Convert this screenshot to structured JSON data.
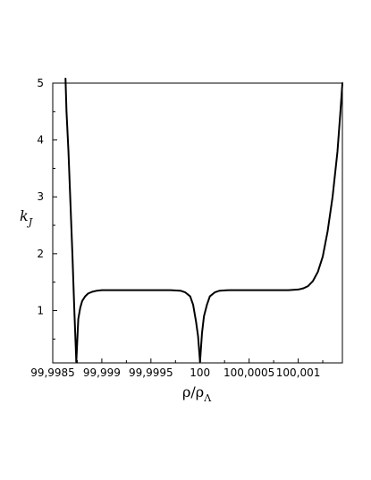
{
  "chart_data": {
    "type": "line",
    "title": "",
    "xlabel": {
      "main": "ρ/ρ",
      "sub": "Λ"
    },
    "ylabel": {
      "main": "k",
      "sub": "J"
    },
    "xlim": [
      99.9985,
      100.00145
    ],
    "ylim": [
      0.08,
      5.0
    ],
    "x_ticks": [
      {
        "value": 99.9985,
        "label": "99,9985"
      },
      {
        "value": 99.999,
        "label": "99,999"
      },
      {
        "value": 99.9995,
        "label": "99,9995"
      },
      {
        "value": 100.0,
        "label": "100"
      },
      {
        "value": 100.0005,
        "label": "100,0005"
      },
      {
        "value": 100.001,
        "label": "100,001"
      }
    ],
    "y_ticks": [
      {
        "value": 1,
        "label": "1"
      },
      {
        "value": 2,
        "label": "2"
      },
      {
        "value": 3,
        "label": "3"
      },
      {
        "value": 4,
        "label": "4"
      },
      {
        "value": 5,
        "label": "5"
      }
    ],
    "grid": false,
    "series": [
      {
        "x": [
          99.99863,
          99.99864,
          99.99866,
          99.99868,
          99.9987,
          99.99872,
          99.99874
        ],
        "y": [
          5.08,
          4.5,
          3.8,
          2.9,
          2.0,
          1.0,
          0.1
        ]
      },
      {
        "x": [
          99.99874,
          99.99876,
          99.99878,
          99.9988,
          99.99883,
          99.99886,
          99.9989,
          99.99895,
          99.999,
          99.9991,
          99.9993,
          99.9995,
          99.9997,
          99.9998,
          99.99985,
          99.9999,
          99.99993,
          99.99996,
          99.99998,
          100.0
        ],
        "y": [
          0.1,
          0.85,
          1.05,
          1.17,
          1.25,
          1.3,
          1.33,
          1.35,
          1.36,
          1.36,
          1.36,
          1.36,
          1.36,
          1.35,
          1.32,
          1.25,
          1.1,
          0.8,
          0.55,
          0.1
        ]
      },
      {
        "x": [
          100.0,
          100.00002,
          100.00004,
          100.00007,
          100.0001,
          100.00015,
          100.0002,
          100.0003,
          100.0005,
          100.0007,
          100.0009,
          100.001,
          100.00105,
          100.0011,
          100.00115,
          100.0012,
          100.00125,
          100.0013,
          100.00135,
          100.0014,
          100.00143,
          100.00145
        ],
        "y": [
          0.1,
          0.6,
          0.9,
          1.1,
          1.25,
          1.32,
          1.35,
          1.36,
          1.36,
          1.36,
          1.36,
          1.37,
          1.39,
          1.43,
          1.52,
          1.68,
          1.95,
          2.4,
          3.0,
          3.8,
          4.5,
          5.0
        ]
      }
    ]
  }
}
